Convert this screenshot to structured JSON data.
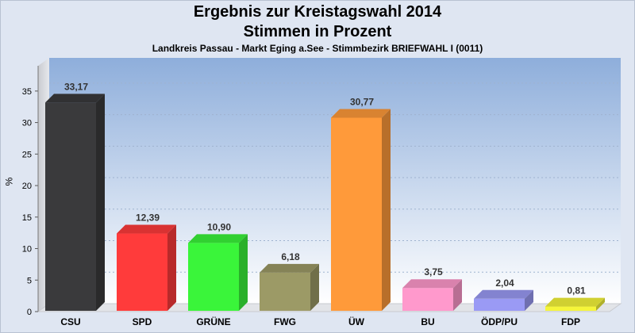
{
  "chart_data": {
    "type": "bar",
    "title": "Ergebnis zur Kreistagswahl 2014",
    "subtitle_line": "Stimmen in Prozent",
    "subtitle": "Landkreis Passau - Markt Eging a.See - Stimmbezirk BRIEFWAHL I (0011)",
    "ylabel": "%",
    "xlabel": "",
    "ylim": [
      0,
      38
    ],
    "yticks": [
      0,
      5,
      10,
      15,
      20,
      25,
      30,
      35
    ],
    "grid": true,
    "categories": [
      "CSU",
      "SPD",
      "GRÜNE",
      "FWG",
      "ÜW",
      "BU",
      "ÖDP/PU",
      "FDP"
    ],
    "values": [
      33.17,
      12.39,
      10.9,
      6.18,
      30.77,
      3.75,
      2.04,
      0.81
    ],
    "value_labels": [
      "33,17",
      "12,39",
      "10,90",
      "6,18",
      "30,77",
      "3,75",
      "2,04",
      "0,81"
    ],
    "colors": [
      "#3a3a3c",
      "#ff3b3b",
      "#3af53a",
      "#9c9a66",
      "#ff9a3a",
      "#ff99cc",
      "#9a9af5",
      "#f5f53a"
    ]
  }
}
